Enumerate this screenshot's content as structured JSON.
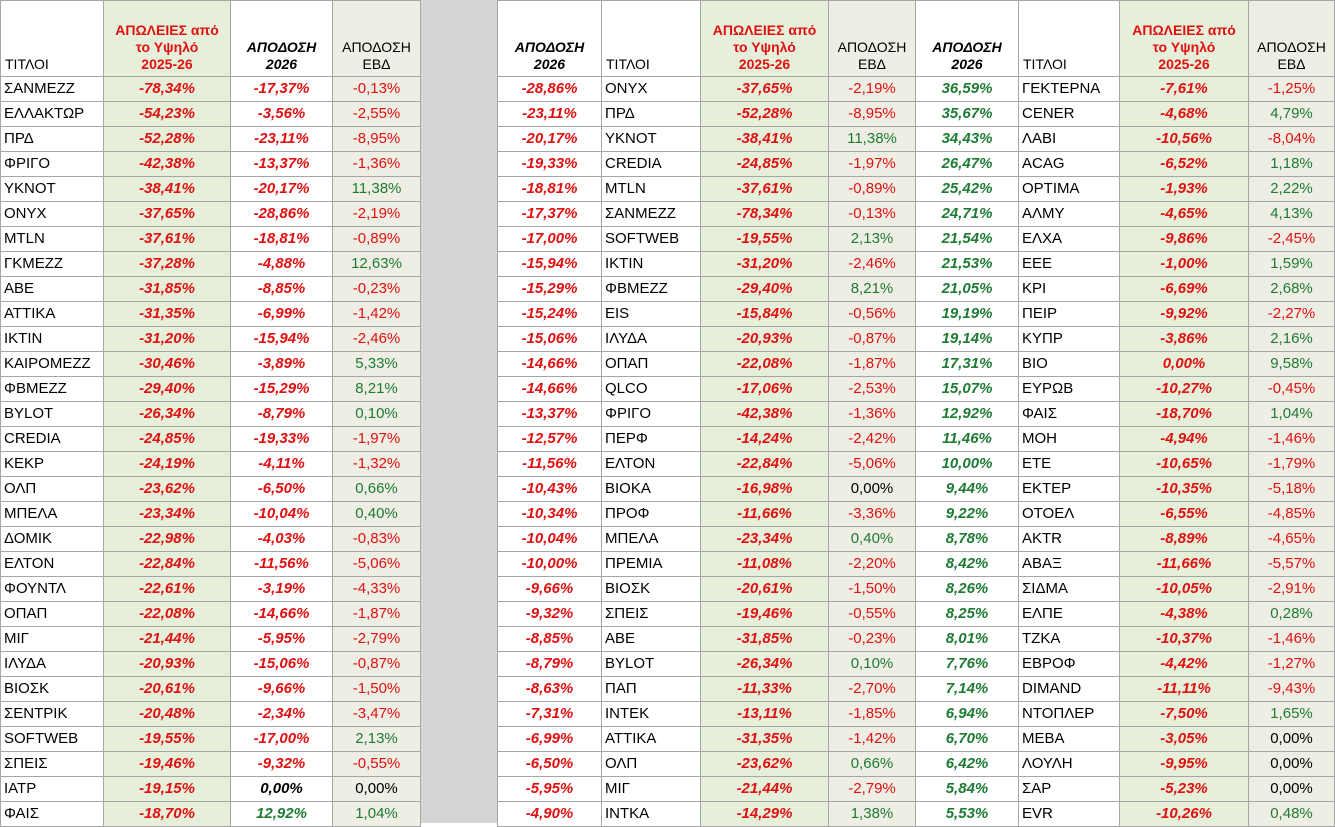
{
  "headers": {
    "name": "ΤΙΤΛΟΙ",
    "loss_line1": "ΑΠΩΛΕΙΕΣ από",
    "loss_line2": "το Υψηλό",
    "loss_line3": "2025-26",
    "ytd_line1": "ΑΠΟΔΟΣΗ",
    "ytd_line2": "2026",
    "week_line1": "ΑΠΟΔΟΣΗ",
    "week_line2": "ΕΒΔ"
  },
  "colors": {
    "negative": "#e01010",
    "positive": "#1e7b34",
    "loss_bg": "#e6efda",
    "week_bg": "#eeeee4",
    "gap": "#d4d4d4"
  },
  "table1": [
    [
      "ΣΑΝΜΕΖΖ",
      "-78,34%",
      "-17,37%",
      "-0,13%"
    ],
    [
      "ΕΛΛΑΚΤΩΡ",
      "-54,23%",
      "-3,56%",
      "-2,55%"
    ],
    [
      "ΠΡΔ",
      "-52,28%",
      "-23,11%",
      "-8,95%"
    ],
    [
      "ΦΡΙΓΟ",
      "-42,38%",
      "-13,37%",
      "-1,36%"
    ],
    [
      "ΥΚΝΟΤ",
      "-38,41%",
      "-20,17%",
      "11,38%"
    ],
    [
      "ΟΝΥΧ",
      "-37,65%",
      "-28,86%",
      "-2,19%"
    ],
    [
      "MTLN",
      "-37,61%",
      "-18,81%",
      "-0,89%"
    ],
    [
      "ΓΚΜΕΖΖ",
      "-37,28%",
      "-4,88%",
      "12,63%"
    ],
    [
      "ΑΒΕ",
      "-31,85%",
      "-8,85%",
      "-0,23%"
    ],
    [
      "ΑΤΤΙΚΑ",
      "-31,35%",
      "-6,99%",
      "-1,42%"
    ],
    [
      "ΙΚΤΙΝ",
      "-31,20%",
      "-15,94%",
      "-2,46%"
    ],
    [
      "ΚΑΙΡΟΜΕΖΖ",
      "-30,46%",
      "-3,89%",
      "5,33%"
    ],
    [
      "ΦΒΜΕΖΖ",
      "-29,40%",
      "-15,29%",
      "8,21%"
    ],
    [
      "BYLOT",
      "-26,34%",
      "-8,79%",
      "0,10%"
    ],
    [
      "CREDIA",
      "-24,85%",
      "-19,33%",
      "-1,97%"
    ],
    [
      "ΚΕΚΡ",
      "-24,19%",
      "-4,11%",
      "-1,32%"
    ],
    [
      "ΟΛΠ",
      "-23,62%",
      "-6,50%",
      "0,66%"
    ],
    [
      "ΜΠΕΛΑ",
      "-23,34%",
      "-10,04%",
      "0,40%"
    ],
    [
      "ΔΟΜΙΚ",
      "-22,98%",
      "-4,03%",
      "-0,83%"
    ],
    [
      "ΕΛΤΟΝ",
      "-22,84%",
      "-11,56%",
      "-5,06%"
    ],
    [
      "ΦΟΥΝΤΛ",
      "-22,61%",
      "-3,19%",
      "-4,33%"
    ],
    [
      "ΟΠΑΠ",
      "-22,08%",
      "-14,66%",
      "-1,87%"
    ],
    [
      "ΜΙΓ",
      "-21,44%",
      "-5,95%",
      "-2,79%"
    ],
    [
      "ΙΛΥΔΑ",
      "-20,93%",
      "-15,06%",
      "-0,87%"
    ],
    [
      "ΒΙΟΣΚ",
      "-20,61%",
      "-9,66%",
      "-1,50%"
    ],
    [
      "ΣΕΝΤΡΙΚ",
      "-20,48%",
      "-2,34%",
      "-3,47%"
    ],
    [
      "SOFTWEB",
      "-19,55%",
      "-17,00%",
      "2,13%"
    ],
    [
      "ΣΠΕΙΣ",
      "-19,46%",
      "-9,32%",
      "-0,55%"
    ],
    [
      "ΙΑΤΡ",
      "-19,15%",
      "0,00%",
      "0,00%"
    ],
    [
      "ΦΑΙΣ",
      "-18,70%",
      "12,92%",
      "1,04%"
    ]
  ],
  "table2": [
    [
      "-28,86%",
      "ΟΝΥΧ",
      "-37,65%",
      "-2,19%"
    ],
    [
      "-23,11%",
      "ΠΡΔ",
      "-52,28%",
      "-8,95%"
    ],
    [
      "-20,17%",
      "ΥΚΝΟΤ",
      "-38,41%",
      "11,38%"
    ],
    [
      "-19,33%",
      "CREDIA",
      "-24,85%",
      "-1,97%"
    ],
    [
      "-18,81%",
      "MTLN",
      "-37,61%",
      "-0,89%"
    ],
    [
      "-17,37%",
      "ΣΑΝΜΕΖΖ",
      "-78,34%",
      "-0,13%"
    ],
    [
      "-17,00%",
      "SOFTWEB",
      "-19,55%",
      "2,13%"
    ],
    [
      "-15,94%",
      "ΙΚΤΙΝ",
      "-31,20%",
      "-2,46%"
    ],
    [
      "-15,29%",
      "ΦΒΜΕΖΖ",
      "-29,40%",
      "8,21%"
    ],
    [
      "-15,24%",
      "EIS",
      "-15,84%",
      "-0,56%"
    ],
    [
      "-15,06%",
      "ΙΛΥΔΑ",
      "-20,93%",
      "-0,87%"
    ],
    [
      "-14,66%",
      "ΟΠΑΠ",
      "-22,08%",
      "-1,87%"
    ],
    [
      "-14,66%",
      "QLCO",
      "-17,06%",
      "-2,53%"
    ],
    [
      "-13,37%",
      "ΦΡΙΓΟ",
      "-42,38%",
      "-1,36%"
    ],
    [
      "-12,57%",
      "ΠΕΡΦ",
      "-14,24%",
      "-2,42%"
    ],
    [
      "-11,56%",
      "ΕΛΤΟΝ",
      "-22,84%",
      "-5,06%"
    ],
    [
      "-10,43%",
      "ΒΙΟΚΑ",
      "-16,98%",
      "0,00%"
    ],
    [
      "-10,34%",
      "ΠΡΟΦ",
      "-11,66%",
      "-3,36%"
    ],
    [
      "-10,04%",
      "ΜΠΕΛΑ",
      "-23,34%",
      "0,40%"
    ],
    [
      "-10,00%",
      "ΠΡΕΜΙΑ",
      "-11,08%",
      "-2,20%"
    ],
    [
      "-9,66%",
      "ΒΙΟΣΚ",
      "-20,61%",
      "-1,50%"
    ],
    [
      "-9,32%",
      "ΣΠΕΙΣ",
      "-19,46%",
      "-0,55%"
    ],
    [
      "-8,85%",
      "ΑΒΕ",
      "-31,85%",
      "-0,23%"
    ],
    [
      "-8,79%",
      "BYLOT",
      "-26,34%",
      "0,10%"
    ],
    [
      "-8,63%",
      "ΠΑΠ",
      "-11,33%",
      "-2,70%"
    ],
    [
      "-7,31%",
      "ΙΝΤΕΚ",
      "-13,11%",
      "-1,85%"
    ],
    [
      "-6,99%",
      "ΑΤΤΙΚΑ",
      "-31,35%",
      "-1,42%"
    ],
    [
      "-6,50%",
      "ΟΛΠ",
      "-23,62%",
      "0,66%"
    ],
    [
      "-5,95%",
      "ΜΙΓ",
      "-21,44%",
      "-2,79%"
    ],
    [
      "-4,90%",
      "ΙΝΤΚΑ",
      "-14,29%",
      "1,38%"
    ]
  ],
  "table3": [
    [
      "36,59%",
      "ΓΕΚΤΕΡΝΑ",
      "-7,61%",
      "-1,25%"
    ],
    [
      "35,67%",
      "CENER",
      "-4,68%",
      "4,79%"
    ],
    [
      "34,43%",
      "ΛΑΒΙ",
      "-10,56%",
      "-8,04%"
    ],
    [
      "26,47%",
      "ACAG",
      "-6,52%",
      "1,18%"
    ],
    [
      "25,42%",
      "OPTIMA",
      "-1,93%",
      "2,22%"
    ],
    [
      "24,71%",
      "ΑΛΜΥ",
      "-4,65%",
      "4,13%"
    ],
    [
      "21,54%",
      "ΕΛΧΑ",
      "-9,86%",
      "-2,45%"
    ],
    [
      "21,53%",
      "ΕΕΕ",
      "-1,00%",
      "1,59%"
    ],
    [
      "21,05%",
      "ΚΡΙ",
      "-6,69%",
      "2,68%"
    ],
    [
      "19,19%",
      "ΠΕΙΡ",
      "-9,92%",
      "-2,27%"
    ],
    [
      "19,14%",
      "ΚΥΠΡ",
      "-3,86%",
      "2,16%"
    ],
    [
      "17,31%",
      "ΒΙΟ",
      "0,00%",
      "9,58%"
    ],
    [
      "15,07%",
      "ΕΥΡΩΒ",
      "-10,27%",
      "-0,45%"
    ],
    [
      "12,92%",
      "ΦΑΙΣ",
      "-18,70%",
      "1,04%"
    ],
    [
      "11,46%",
      "ΜΟΗ",
      "-4,94%",
      "-1,46%"
    ],
    [
      "10,00%",
      "ΕΤΕ",
      "-10,65%",
      "-1,79%"
    ],
    [
      "9,44%",
      "ΕΚΤΕΡ",
      "-10,35%",
      "-5,18%"
    ],
    [
      "9,22%",
      "ΟΤΟΕΛ",
      "-6,55%",
      "-4,85%"
    ],
    [
      "8,78%",
      "AKTR",
      "-8,89%",
      "-4,65%"
    ],
    [
      "8,42%",
      "ΑΒΑΞ",
      "-11,66%",
      "-5,57%"
    ],
    [
      "8,26%",
      "ΣΙΔΜΑ",
      "-10,05%",
      "-2,91%"
    ],
    [
      "8,25%",
      "ΕΛΠΕ",
      "-4,38%",
      "0,28%"
    ],
    [
      "8,01%",
      "ΤΖΚΑ",
      "-10,37%",
      "-1,46%"
    ],
    [
      "7,76%",
      "ΕΒΡΟΦ",
      "-4,42%",
      "-1,27%"
    ],
    [
      "7,14%",
      "DIMAND",
      "-11,11%",
      "-9,43%"
    ],
    [
      "6,94%",
      "ΝΤΟΠΛΕΡ",
      "-7,50%",
      "1,65%"
    ],
    [
      "6,70%",
      "ΜΕΒΑ",
      "-3,05%",
      "0,00%"
    ],
    [
      "6,42%",
      "ΛΟΥΛΗ",
      "-9,95%",
      "0,00%"
    ],
    [
      "5,84%",
      "ΣΑΡ",
      "-5,23%",
      "0,00%"
    ],
    [
      "5,53%",
      "EVR",
      "-10,26%",
      "0,48%"
    ]
  ]
}
